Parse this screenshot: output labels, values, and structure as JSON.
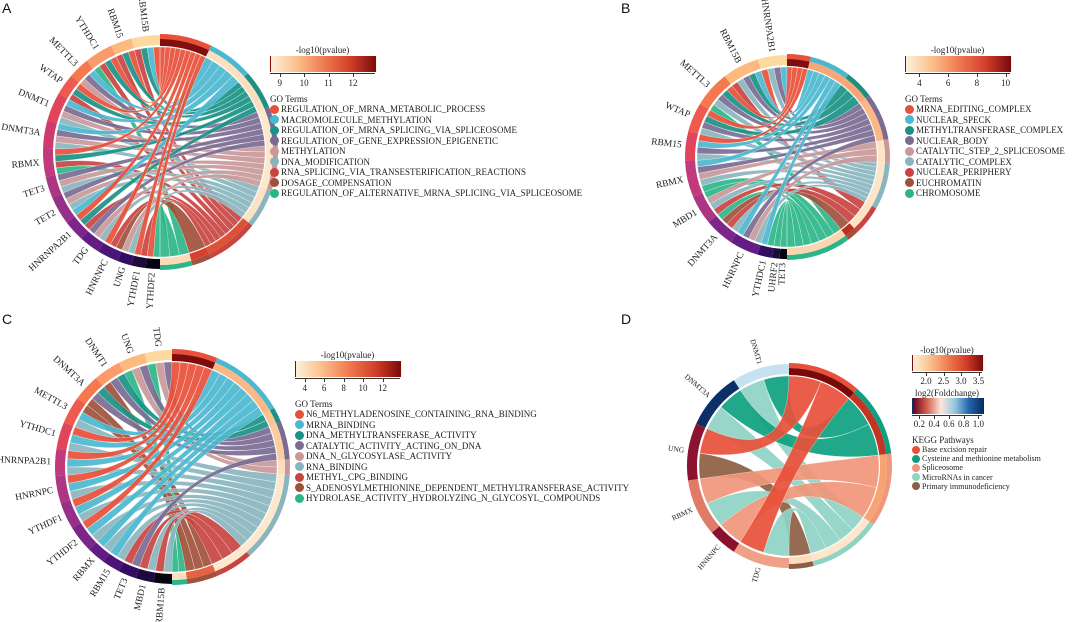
{
  "chart_data": [
    {
      "type": "chord",
      "panel": "A",
      "colorbar": {
        "title": "-log10(pvalue)",
        "ticks": [
          "9",
          "10",
          "11",
          "12"
        ],
        "range": [
          8.6,
          12.9
        ],
        "colors": [
          "#fdf0dc",
          "#fcbf8a",
          "#f07b51",
          "#d4402b",
          "#7a0a0a"
        ]
      },
      "legend_title": "GO Terms",
      "terms": [
        {
          "name": "REGULATION_OF_MRNA_METABOLIC_PROCESS",
          "color": "#e8503a",
          "pvalue_score": 12.8
        },
        {
          "name": "MACROMOLECULE_METHYLATION",
          "color": "#4bb8d0",
          "pvalue_score": 9.0
        },
        {
          "name": "REGULATION_OF_MRNA_SPLICING_VIA_SPLICEOSOME",
          "color": "#1b9186",
          "pvalue_score": 9.0
        },
        {
          "name": "REGULATION_OF_GENE_EXPRESSION_EPIGENETIC",
          "color": "#7a6b93",
          "pvalue_score": 8.8
        },
        {
          "name": "METHYLATION",
          "color": "#c9989a",
          "pvalue_score": 8.8
        },
        {
          "name": "DNA_MODIFICATION",
          "color": "#8ab5bf",
          "pvalue_score": 8.9
        },
        {
          "name": "RNA_SPLICING_VIA_TRANSESTERIFICATION_REACTIONS",
          "color": "#c84440",
          "pvalue_score": 11.5
        },
        {
          "name": "DOSAGE_COMPENSATION",
          "color": "#a0503b",
          "pvalue_score": 11.8
        },
        {
          "name": "REGULATION_OF_ALTERNATIVE_MRNA_SPLICING_VIA_SPLICEOSOME",
          "color": "#2cb588",
          "pvalue_score": 9.1
        }
      ],
      "term_sizes": [
        8,
        7,
        6,
        6,
        7,
        6,
        8,
        3,
        5
      ],
      "genes": [
        "RBM15B",
        "RBM15",
        "YTHDC1",
        "METTL3",
        "WTAP",
        "DNMT1",
        "DNMT3A",
        "RBMX",
        "TET3",
        "TET2",
        "HNRNPA2B1",
        "TDG",
        "HNRNPC",
        "UNG",
        "YTHDF1",
        "YTHDF2"
      ],
      "gene_colors": [
        "#fdd9a0",
        "#fdb97e",
        "#fb9a6a",
        "#f6784f",
        "#ee5a4f",
        "#e0455a",
        "#d13a6c",
        "#c03a7c",
        "#ac3584",
        "#962f88",
        "#7d2689",
        "#641c84",
        "#4b1479",
        "#330d61",
        "#1c0a3c",
        "#050410"
      ],
      "links": [
        [
          0,
          0
        ],
        [
          0,
          1
        ],
        [
          0,
          2
        ],
        [
          0,
          6
        ],
        [
          1,
          0
        ],
        [
          1,
          2
        ],
        [
          1,
          6
        ],
        [
          2,
          0
        ],
        [
          2,
          2
        ],
        [
          2,
          6
        ],
        [
          2,
          8
        ],
        [
          3,
          1
        ],
        [
          3,
          3
        ],
        [
          3,
          4
        ],
        [
          4,
          0
        ],
        [
          4,
          2
        ],
        [
          4,
          6
        ],
        [
          5,
          1
        ],
        [
          5,
          3
        ],
        [
          5,
          4
        ],
        [
          5,
          5
        ],
        [
          6,
          1
        ],
        [
          6,
          3
        ],
        [
          6,
          4
        ],
        [
          6,
          5
        ],
        [
          7,
          0
        ],
        [
          7,
          2
        ],
        [
          7,
          6
        ],
        [
          7,
          8
        ],
        [
          8,
          3
        ],
        [
          8,
          4
        ],
        [
          8,
          5
        ],
        [
          9,
          3
        ],
        [
          9,
          4
        ],
        [
          9,
          5
        ],
        [
          9,
          1
        ],
        [
          10,
          0
        ],
        [
          10,
          2
        ],
        [
          10,
          6
        ],
        [
          11,
          3
        ],
        [
          11,
          4
        ],
        [
          11,
          5
        ],
        [
          12,
          0
        ],
        [
          12,
          6
        ],
        [
          12,
          7
        ],
        [
          13,
          4
        ],
        [
          13,
          5
        ],
        [
          14,
          0
        ],
        [
          14,
          6
        ],
        [
          15,
          0
        ],
        [
          15,
          8
        ]
      ]
    },
    {
      "type": "chord",
      "panel": "B",
      "colorbar": {
        "title": "-log10(pvalue)",
        "ticks": [
          "4",
          "6",
          "8",
          "10"
        ],
        "range": [
          3.0,
          10.3
        ],
        "colors": [
          "#fdf0dc",
          "#fcbf8a",
          "#f07b51",
          "#d4402b",
          "#7a0a0a"
        ]
      },
      "legend_title": "GO Terms",
      "terms": [
        {
          "name": "MRNA_EDITING_COMPLEX",
          "color": "#e8503a",
          "pvalue_score": 10.2
        },
        {
          "name": "NUCLEAR_SPECK",
          "color": "#4bb8d0",
          "pvalue_score": 5.5
        },
        {
          "name": "METHYLTRANSFERASE_COMPLEX",
          "color": "#1b9186",
          "pvalue_score": 5.5
        },
        {
          "name": "NUCLEAR_BODY",
          "color": "#7a6b93",
          "pvalue_score": 5.0
        },
        {
          "name": "CATALYTIC_STEP_2_SPLICEOSOME",
          "color": "#c9989a",
          "pvalue_score": 3.5
        },
        {
          "name": "CATALYTIC_COMPLEX",
          "color": "#8ab5bf",
          "pvalue_score": 3.4
        },
        {
          "name": "NUCLEAR_PERIPHERY",
          "color": "#c84440",
          "pvalue_score": 3.5
        },
        {
          "name": "EUCHROMATIN",
          "color": "#a0503b",
          "pvalue_score": 9.0
        },
        {
          "name": "CHROMOSOME",
          "color": "#2cb588",
          "pvalue_score": 4.0
        }
      ],
      "term_sizes": [
        4,
        7,
        5,
        8,
        4,
        8,
        5,
        2,
        11
      ],
      "genes": [
        "HNRNPA2B1",
        "RBM15B",
        "METTL3",
        "WTAP",
        "RBM15",
        "RBMX",
        "MBD1",
        "DNMT3A",
        "HNRNPC",
        "YTHDC1",
        "UHRF2",
        "TET3"
      ],
      "gene_colors": [
        "#fdd9a0",
        "#fdb97e",
        "#f6784f",
        "#ee5a4f",
        "#e0455a",
        "#c03a7c",
        "#ac3584",
        "#7d2689",
        "#641c84",
        "#330d61",
        "#1c0a3c",
        "#050410"
      ],
      "links": [
        [
          0,
          1
        ],
        [
          0,
          3
        ],
        [
          0,
          5
        ],
        [
          0,
          0
        ],
        [
          1,
          1
        ],
        [
          1,
          2
        ],
        [
          1,
          3
        ],
        [
          1,
          5
        ],
        [
          1,
          6
        ],
        [
          2,
          0
        ],
        [
          2,
          2
        ],
        [
          2,
          3
        ],
        [
          2,
          5
        ],
        [
          2,
          8
        ],
        [
          3,
          0
        ],
        [
          3,
          2
        ],
        [
          3,
          3
        ],
        [
          3,
          5
        ],
        [
          4,
          0
        ],
        [
          4,
          1
        ],
        [
          4,
          3
        ],
        [
          4,
          5
        ],
        [
          5,
          1
        ],
        [
          5,
          3
        ],
        [
          5,
          4
        ],
        [
          5,
          5
        ],
        [
          5,
          8
        ],
        [
          6,
          8
        ],
        [
          6,
          4
        ],
        [
          6,
          5
        ],
        [
          6,
          6
        ],
        [
          7,
          8
        ],
        [
          7,
          7
        ],
        [
          7,
          6
        ],
        [
          7,
          5
        ],
        [
          8,
          1
        ],
        [
          8,
          3
        ],
        [
          8,
          4
        ],
        [
          8,
          5
        ],
        [
          9,
          1
        ],
        [
          9,
          8
        ],
        [
          10,
          8
        ],
        [
          11,
          8
        ]
      ]
    },
    {
      "type": "chord",
      "panel": "C",
      "colorbar": {
        "title": "-log10(pvalue)",
        "ticks": [
          "4",
          "6",
          "8",
          "10",
          "12"
        ],
        "range": [
          3.0,
          13.8
        ],
        "colors": [
          "#fdf0dc",
          "#fcbf8a",
          "#f07b51",
          "#d4402b",
          "#7a0a0a"
        ]
      },
      "legend_title": "GO Terms",
      "terms": [
        {
          "name": "N6_METHYLADENOSINE_CONTAINING_RNA_BINDING",
          "color": "#e8503a",
          "pvalue_score": 13.7
        },
        {
          "name": "MRNA_BINDING",
          "color": "#4bb8d0",
          "pvalue_score": 6.0
        },
        {
          "name": "DNA_METHYLTRANSFERASE_ACTIVITY",
          "color": "#1b9186",
          "pvalue_score": 5.5
        },
        {
          "name": "CATALYTIC_ACTIVITY_ACTING_ON_DNA",
          "color": "#7a6b93",
          "pvalue_score": 5.0
        },
        {
          "name": "DNA_N_GLYCOSYLASE_ACTIVITY",
          "color": "#c9989a",
          "pvalue_score": 4.0
        },
        {
          "name": "RNA_BINDING",
          "color": "#8ab5bf",
          "pvalue_score": 3.5
        },
        {
          "name": "METHYL_CPG_BINDING",
          "color": "#c84440",
          "pvalue_score": 3.5
        },
        {
          "name": "S_ADENOSYLMETHIONINE_DEPENDENT_METHYLTRANSFERASE_ACTIVITY",
          "color": "#a0503b",
          "pvalue_score": 9.5
        },
        {
          "name": "HYDROLASE_ACTIVITY_HYDROLYZING_N_GLYCOSYL_COMPOUNDS",
          "color": "#2cb588",
          "pvalue_score": 4.0
        }
      ],
      "term_sizes": [
        6,
        10,
        2,
        5,
        2,
        12,
        5,
        4,
        2
      ],
      "genes": [
        "TDG",
        "UNG",
        "DNMT1",
        "DNMT3A",
        "METTL3",
        "YTHDC1",
        "HNRNPA2B1",
        "HNRNPC",
        "YTHDF1",
        "YTHDF2",
        "RBMX",
        "RBM15",
        "TET3",
        "MBD1",
        "RBM15B"
      ],
      "gene_colors": [
        "#fdd9a0",
        "#fdb97e",
        "#fb9a6a",
        "#f6784f",
        "#ee5a4f",
        "#e0455a",
        "#c03a7c",
        "#ac3584",
        "#962f88",
        "#7d2689",
        "#641c84",
        "#4b1479",
        "#330d61",
        "#1c0a3c",
        "#050410"
      ],
      "links": [
        [
          0,
          3
        ],
        [
          0,
          4
        ],
        [
          0,
          8
        ],
        [
          1,
          3
        ],
        [
          1,
          4
        ],
        [
          1,
          8
        ],
        [
          2,
          2
        ],
        [
          2,
          3
        ],
        [
          2,
          7
        ],
        [
          3,
          2
        ],
        [
          3,
          3
        ],
        [
          3,
          7
        ],
        [
          4,
          7
        ],
        [
          4,
          1
        ],
        [
          4,
          5
        ],
        [
          5,
          0
        ],
        [
          5,
          1
        ],
        [
          5,
          5
        ],
        [
          6,
          0
        ],
        [
          6,
          1
        ],
        [
          6,
          5
        ],
        [
          7,
          0
        ],
        [
          7,
          1
        ],
        [
          7,
          5
        ],
        [
          8,
          0
        ],
        [
          8,
          1
        ],
        [
          8,
          5
        ],
        [
          9,
          0
        ],
        [
          9,
          1
        ],
        [
          9,
          5
        ],
        [
          10,
          1
        ],
        [
          10,
          5
        ],
        [
          11,
          1
        ],
        [
          11,
          5
        ],
        [
          12,
          6
        ],
        [
          12,
          3
        ],
        [
          13,
          6
        ],
        [
          13,
          5
        ],
        [
          14,
          6
        ],
        [
          14,
          5
        ]
      ]
    },
    {
      "type": "chord",
      "panel": "D",
      "colorbar": {
        "title": "-log10(pvalue)",
        "ticks": [
          "2.0",
          "2.5",
          "3.0",
          "3.5"
        ],
        "range": [
          1.6,
          3.6
        ],
        "colors": [
          "#fdf0dc",
          "#fcbf8a",
          "#f07b51",
          "#d4402b",
          "#7a0a0a"
        ]
      },
      "colorbar2": {
        "title": "log2(Foldchange)",
        "ticks": [
          "0.2",
          "0.4",
          "0.6",
          "0.8",
          "1.0"
        ],
        "range": [
          0.1,
          1.05
        ],
        "colors": [
          "#67001f",
          "#d6604d",
          "#fbe7dc",
          "#92c5de",
          "#2166ac",
          "#053061"
        ]
      },
      "legend_title": "KEGG Pathways",
      "terms": [
        {
          "name": "Base excision repair",
          "color": "#e8503a",
          "pvalue_score": 3.6
        },
        {
          "name": "Cysteine and methionine metabolism",
          "color": "#0e9f80",
          "pvalue_score": 3.2
        },
        {
          "name": "Spliceosome",
          "color": "#f0967a",
          "pvalue_score": 2.3
        },
        {
          "name": "MicroRNAs in cancer",
          "color": "#8fd3c4",
          "pvalue_score": 1.7
        },
        {
          "name": "Primary immunodeficiency",
          "color": "#8d5e43",
          "pvalue_score": 1.8
        }
      ],
      "term_sizes": [
        3,
        3,
        3,
        3,
        1
      ],
      "genes": [
        "DNMT1",
        "DNMT3A",
        "UNG",
        "RBMX",
        "HNRNPC",
        "TDG"
      ],
      "gene_colors": [
        "#c6e2f0",
        "#0b2f66",
        "#8c1330",
        "#e07b68",
        "#8a102d",
        "#f0a087"
      ],
      "links": [
        [
          0,
          1
        ],
        [
          0,
          3
        ],
        [
          1,
          1
        ],
        [
          1,
          3
        ],
        [
          2,
          0
        ],
        [
          2,
          4
        ],
        [
          3,
          2
        ],
        [
          3,
          3
        ],
        [
          4,
          2
        ],
        [
          5,
          0
        ],
        [
          5,
          3
        ]
      ]
    }
  ]
}
